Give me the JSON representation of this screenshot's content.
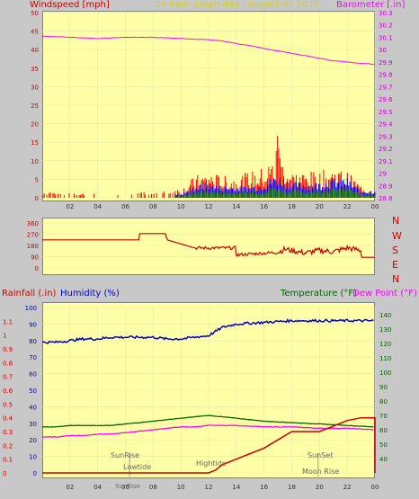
{
  "header": {
    "left_label": "Windspeed [mph]",
    "title": "24 hour graph day - August 07 2017",
    "right_label": "Barometer [.in]"
  },
  "panel_bottom": {
    "rain_label": "Rainfall (.in)",
    "humidity_label": "Humidity (%)",
    "temp_label": "Temperature (°F)",
    "dew_label": "Dew Point (°F)"
  },
  "direction_letters": [
    "N",
    "W",
    "S",
    "E",
    "N"
  ],
  "annotations": {
    "sunrise": "SunRise",
    "sunset": "SunSet",
    "lowtide": "Lowtide",
    "hightide": "Hightide",
    "moonrise": "Moon Rise",
    "sunrise_axis": "SunRise"
  },
  "colors": {
    "bg": "#c8c8c8",
    "plot_bg": "#ffffa8",
    "wind": "#ff0000",
    "gust": "#0000ff",
    "avg": "#008000",
    "baro": "#ff00ff",
    "humidity": "#0000cc",
    "temperature": "#006600",
    "dew": "#ff00ff",
    "rain": "#cc0000",
    "dir": "#cc0000"
  },
  "chart_data": [
    {
      "type": "line",
      "title": "24 hour graph day - August 07 2017",
      "xticks": [
        "02",
        "04",
        "06",
        "08",
        "10",
        "12",
        "14",
        "16",
        "18",
        "20",
        "22",
        "00"
      ],
      "ylabel": "Windspeed [mph]",
      "ylim": [
        0,
        50
      ],
      "yticks": [
        "0",
        "5",
        "10",
        "15",
        "20",
        "25",
        "30",
        "35",
        "40",
        "45",
        "50"
      ],
      "y2label": "Barometer [.in]",
      "y2lim": [
        28.8,
        30.3
      ],
      "y2ticks": [
        "28.8",
        "28.9",
        "29",
        "29.1",
        "29.2",
        "29.3",
        "29.4",
        "29.5",
        "29.6",
        "29.7",
        "29.8",
        "29.9",
        "30",
        "30.1",
        "30.2",
        "30.3"
      ],
      "series": [
        {
          "name": "Barometer",
          "axis": "y2",
          "x": [
            0,
            2,
            4,
            6,
            8,
            10,
            12,
            13,
            14,
            15,
            16,
            17,
            18,
            19,
            20,
            21,
            22,
            23,
            24
          ],
          "values": [
            30.11,
            30.1,
            30.09,
            30.1,
            30.1,
            30.09,
            30.08,
            30.07,
            30.05,
            30.03,
            30.01,
            29.99,
            29.97,
            29.95,
            29.93,
            29.91,
            29.9,
            29.89,
            29.88
          ]
        },
        {
          "name": "Windspeed",
          "axis": "y",
          "x": [
            0,
            1,
            2,
            3,
            4,
            5,
            6,
            7,
            8,
            9,
            10,
            11,
            12,
            13,
            14,
            15,
            16,
            17,
            18,
            19,
            20,
            21,
            22,
            23,
            24
          ],
          "values": [
            1,
            2,
            1,
            1,
            2,
            1,
            1,
            2,
            1,
            2,
            1,
            3,
            4,
            3,
            3,
            3,
            4,
            6,
            4,
            4,
            4,
            5,
            5,
            2,
            2
          ]
        },
        {
          "name": "Gust",
          "axis": "y",
          "x": [
            0,
            1,
            2,
            3,
            4,
            5,
            6,
            7,
            8,
            9,
            10,
            11,
            12,
            13,
            14,
            15,
            16,
            17,
            18,
            19,
            20,
            21,
            22,
            23,
            24
          ],
          "values": [
            2,
            3,
            2,
            2,
            3,
            2,
            2,
            3,
            2,
            3,
            2,
            5,
            6,
            5,
            5,
            6,
            7,
            10,
            6,
            6,
            6,
            7,
            6,
            3,
            2
          ]
        }
      ]
    },
    {
      "type": "line",
      "yticks": [
        "0",
        "90",
        "180",
        "270",
        "360"
      ],
      "ylim": [
        0,
        360
      ],
      "series": [
        {
          "name": "Wind Direction",
          "x": [
            0,
            7,
            7,
            8,
            8,
            8.9,
            9,
            11,
            12,
            14,
            14,
            17,
            17.5,
            19,
            20,
            21,
            22,
            23,
            23,
            24
          ],
          "values": [
            225,
            225,
            275,
            275,
            275,
            275,
            225,
            160,
            160,
            160,
            105,
            125,
            150,
            120,
            140,
            130,
            160,
            140,
            85,
            85
          ]
        }
      ]
    },
    {
      "type": "line",
      "xticks": [
        "02",
        "04",
        "06",
        "08",
        "10",
        "12",
        "14",
        "16",
        "18",
        "20",
        "22",
        "00"
      ],
      "ylim_humidity": [
        0,
        100
      ],
      "ylim_rain": [
        0,
        1.2
      ],
      "ylim_temp": [
        30,
        145
      ],
      "yticks_humidity": [
        "0",
        "10",
        "20",
        "30",
        "40",
        "50",
        "60",
        "70",
        "80",
        "90",
        "100"
      ],
      "yticks_rain": [
        "0",
        "0.1",
        "0.2",
        "0.3",
        "0.4",
        "0.5",
        "0.6",
        "0.7",
        "0.8",
        "0.9",
        "1",
        "1.1"
      ],
      "yticks_temp": [
        "40",
        "50",
        "60",
        "70",
        "80",
        "90",
        "100",
        "110",
        "120",
        "130",
        "140"
      ],
      "series": [
        {
          "name": "Humidity",
          "x": [
            0,
            1,
            2,
            3,
            4,
            5,
            6,
            7,
            8,
            9,
            10,
            11,
            12,
            13,
            14,
            16,
            18,
            20,
            22,
            24
          ],
          "values": [
            79,
            79,
            80,
            81,
            81,
            82,
            82,
            82,
            82,
            81,
            81,
            82,
            83,
            88,
            90,
            91,
            92,
            92,
            92,
            92
          ]
        },
        {
          "name": "Temperature",
          "x": [
            0,
            1,
            2,
            3,
            4,
            5,
            6,
            7,
            8,
            9,
            10,
            11,
            12,
            13,
            14,
            16,
            18,
            20,
            22,
            24
          ],
          "values": [
            62,
            62,
            63,
            63,
            63,
            63,
            64,
            65,
            66,
            67,
            68,
            69,
            70,
            69,
            68,
            66,
            65,
            64,
            63,
            62
          ]
        },
        {
          "name": "Dew Point",
          "x": [
            0,
            1,
            2,
            3,
            4,
            5,
            6,
            7,
            8,
            9,
            10,
            11,
            12,
            13,
            14,
            16,
            18,
            20,
            22,
            24
          ],
          "values": [
            55,
            55,
            56,
            56,
            57,
            57,
            58,
            59,
            60,
            61,
            62,
            62,
            63,
            63,
            63,
            62,
            62,
            61,
            61,
            60
          ]
        },
        {
          "name": "Rainfall",
          "x": [
            0,
            12,
            12.5,
            13,
            14,
            15,
            16,
            17,
            18,
            19,
            20,
            21,
            22,
            23,
            24,
            24
          ],
          "values": [
            0,
            0,
            0.02,
            0.06,
            0.1,
            0.14,
            0.18,
            0.24,
            0.3,
            0.3,
            0.3,
            0.34,
            0.38,
            0.4,
            0.4,
            0
          ]
        }
      ]
    }
  ]
}
